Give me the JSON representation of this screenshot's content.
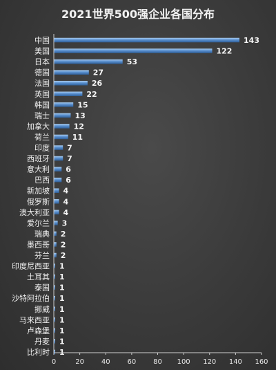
{
  "chart_data": {
    "type": "bar",
    "orientation": "horizontal",
    "title": "2021世界500强企业各国分布",
    "categories": [
      "中国",
      "美国",
      "日本",
      "德国",
      "法国",
      "英国",
      "韩国",
      "瑞士",
      "加拿大",
      "荷兰",
      "印度",
      "西班牙",
      "意大利",
      "巴西",
      "新加坡",
      "俄罗斯",
      "澳大利亚",
      "爱尔兰",
      "瑞典",
      "墨西哥",
      "芬兰",
      "印度尼西亚",
      "土耳其",
      "泰国",
      "沙特阿拉伯",
      "挪威",
      "马来西亚",
      "卢森堡",
      "丹麦",
      "比利时"
    ],
    "values": [
      143,
      122,
      53,
      27,
      26,
      22,
      15,
      13,
      12,
      11,
      7,
      7,
      6,
      6,
      4,
      4,
      4,
      3,
      2,
      2,
      2,
      1,
      1,
      1,
      1,
      1,
      1,
      1,
      1,
      1
    ],
    "xlim": [
      0,
      160
    ],
    "xticks": [
      "0",
      "20",
      "40",
      "60",
      "80",
      "100",
      "120",
      "140",
      "160"
    ],
    "grid": false,
    "legend": "none",
    "colors": {
      "bar": "#4f86c6",
      "bar_highlight": "#9cc3ec",
      "text": "#f0f0f0"
    }
  }
}
